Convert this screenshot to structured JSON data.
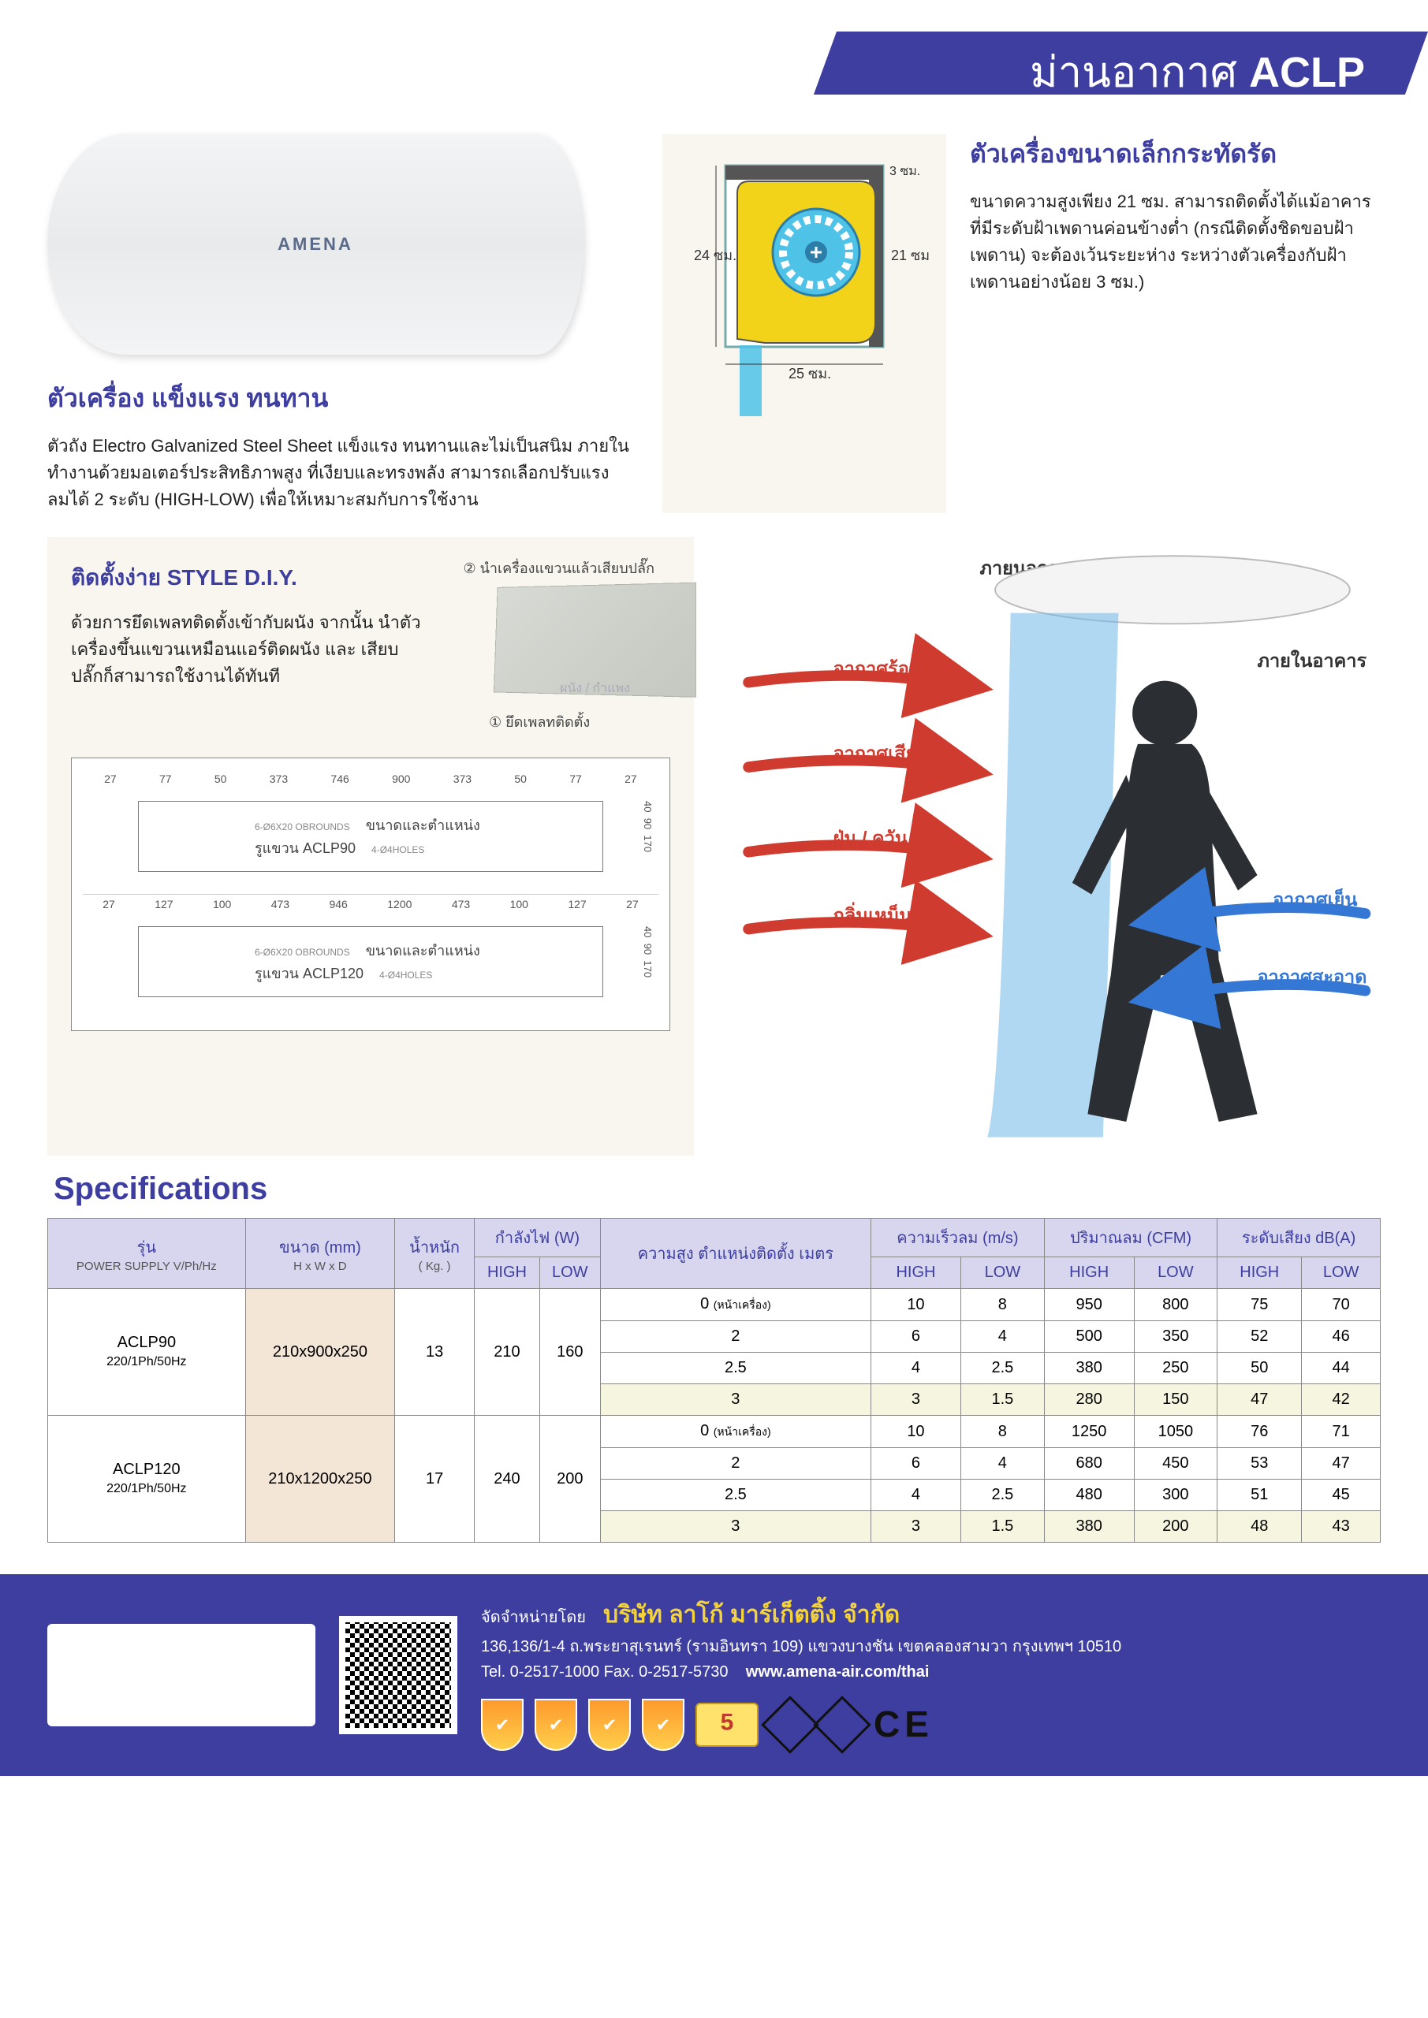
{
  "header": {
    "thai": "ม่านอากาศ",
    "model": "ACLP"
  },
  "product_logo": "AMENA",
  "strength": {
    "title": "ตัวเครื่อง แข็งแรง ทนทาน",
    "body": "ตัวถัง Electro Galvanized Steel Sheet แข็งแรง ทนทานและไม่เป็นสนิม ภายในทำงานด้วยมอเตอร์ประสิทธิภาพสูง ที่เงียบและทรงพลัง สามารถเลือกปรับแรงลมได้ 2 ระดับ (HIGH-LOW) เพื่อให้เหมาะสมกับการใช้งาน"
  },
  "compact": {
    "title": "ตัวเครื่องขนาดเล็กกระทัดรัด",
    "body": "ขนาดความสูงเพียง 21 ซม. สามารถติดตั้งได้แม้อาคารที่มีระดับฝ้าเพดานค่อนข้างต่ำ (กรณีติดตั้งชิดขอบฝ้าเพดาน) จะต้องเว้นระยะห่าง ระหว่างตัวเครื่องกับฝ้าเพดานอย่างน้อย 3 ซม.)",
    "dims": {
      "height": "24 ซม.",
      "width": "25 ซม.",
      "unit_h": "21 ซม.",
      "gap": "3 ซม."
    }
  },
  "diy": {
    "title": "ติดตั้งง่าย STYLE D.I.Y.",
    "body": "ด้วยการยึดเพลทติดตั้งเข้ากับผนัง จากนั้น นำตัวเครื่องขึ้นแขวนเหมือนแอร์ติดผนัง และ เสียบปลั๊กก็สามารถใช้งานได้ทันที",
    "step1": "① ยึดเพลทติดตั้ง",
    "step2": "② นำเครื่องแขวนแล้วเสียบปลั๊ก",
    "wall": "ผนัง / กำแพง"
  },
  "drawings": {
    "aclp90": {
      "label": "ขนาดและตำแหน่งรูแขวน ACLP90",
      "top_total": "900",
      "top_inner": "746",
      "top_half": "373",
      "side_77": "77",
      "side_50": "50",
      "side_27": "27",
      "right_170": "170",
      "right_40": "40",
      "right_90": "90",
      "holes": "4-Ø4HOLES",
      "obr": "6-Ø6X20 OBROUNDS"
    },
    "aclp120": {
      "label": "ขนาดและตำแหน่งรูแขวน ACLP120",
      "top_total": "1200",
      "top_inner": "946",
      "top_half": "473",
      "side_127": "127",
      "side_100": "100",
      "side_27": "27",
      "right_170": "170",
      "right_40": "40",
      "right_90": "90",
      "holes": "4-Ø4HOLES",
      "obr": "6-Ø6X20 OBROUNDS"
    }
  },
  "airflow": {
    "outside": "ภายนอกอาคาร",
    "inside": "ภายในอาคาร",
    "hot": "อากาศร้อน",
    "bad": "อากาศเสีย",
    "dust": "ฝุ่น / ควัน",
    "smell": "กลิ่นเหม็น",
    "cool": "อากาศเย็น",
    "clean": "อากาศสะอาด"
  },
  "spec": {
    "heading": "Specifications",
    "headers": {
      "model": "รุ่น",
      "power_sub": "POWER SUPPLY V/Ph/Hz",
      "size": "ขนาด (mm)",
      "size_sub": "H x W x D",
      "weight": "น้ำหนัก",
      "weight_sub": "( Kg. )",
      "power": "กำลังไฟ (W)",
      "height": "ความสูง ตำแหน่งติดตั้ง เมตร",
      "velocity": "ความเร็วลม (m/s)",
      "volume": "ปริมาณลม (CFM)",
      "noise": "ระดับเสียง dB(A)",
      "high": "HIGH",
      "low": "LOW"
    },
    "height_note": "(หน้าเครื่อง)",
    "rows": [
      {
        "model": "ACLP90",
        "supply": "220/1Ph/50Hz",
        "size": "210x900x250",
        "weight": "13",
        "p_high": "210",
        "p_low": "160",
        "data": [
          {
            "h": "0",
            "vh": "10",
            "vl": "8",
            "qh": "950",
            "ql": "800",
            "nh": "75",
            "nl": "70"
          },
          {
            "h": "2",
            "vh": "6",
            "vl": "4",
            "qh": "500",
            "ql": "350",
            "nh": "52",
            "nl": "46"
          },
          {
            "h": "2.5",
            "vh": "4",
            "vl": "2.5",
            "qh": "380",
            "ql": "250",
            "nh": "50",
            "nl": "44"
          },
          {
            "h": "3",
            "vh": "3",
            "vl": "1.5",
            "qh": "280",
            "ql": "150",
            "nh": "47",
            "nl": "42",
            "fade": true
          }
        ]
      },
      {
        "model": "ACLP120",
        "supply": "220/1Ph/50Hz",
        "size": "210x1200x250",
        "weight": "17",
        "p_high": "240",
        "p_low": "200",
        "data": [
          {
            "h": "0",
            "vh": "10",
            "vl": "8",
            "qh": "1250",
            "ql": "1050",
            "nh": "76",
            "nl": "71"
          },
          {
            "h": "2",
            "vh": "6",
            "vl": "4",
            "qh": "680",
            "ql": "450",
            "nh": "53",
            "nl": "47"
          },
          {
            "h": "2.5",
            "vh": "4",
            "vl": "2.5",
            "qh": "480",
            "ql": "300",
            "nh": "51",
            "nl": "45"
          },
          {
            "h": "3",
            "vh": "3",
            "vl": "1.5",
            "qh": "380",
            "ql": "200",
            "nh": "48",
            "nl": "43",
            "fade": true
          }
        ]
      }
    ]
  },
  "footer": {
    "dist": "จัดจำหน่ายโดย",
    "company": "บริษัท ลาโก้ มาร์เก็ตติ้ง จำกัด",
    "address": "136,136/1-4 ถ.พระยาสุเรนทร์ (รามอินทรา 109) แขวงบางชัน เขตคลองสามวา กรุงเทพฯ 10510",
    "tel": "Tel. 0-2517-1000  Fax. 0-2517-5730",
    "web": "www.amena-air.com/thai"
  },
  "colors": {
    "indigo": "#3d3e9f",
    "cream": "#f8f6ef",
    "red": "#cf3b2e",
    "blue": "#3477d4",
    "yellow": "#f4d33a",
    "orange": "#f59e1f",
    "cyan": "#4fc2e8",
    "fan_yellow": "#f3d21a"
  }
}
